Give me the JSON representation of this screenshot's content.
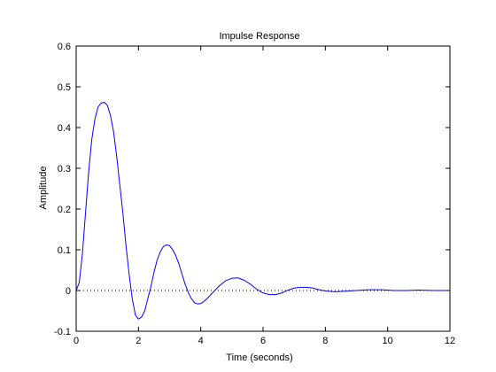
{
  "chart_data": {
    "type": "line",
    "title": "Impulse Response",
    "xlabel": "Time (seconds)",
    "ylabel": "Amplitude",
    "xlim": [
      0,
      12
    ],
    "ylim": [
      -0.1,
      0.6
    ],
    "x_ticks": [
      0,
      2,
      4,
      6,
      8,
      10,
      12
    ],
    "y_ticks": [
      -0.1,
      0,
      0.1,
      0.2,
      0.3,
      0.4,
      0.5,
      0.6
    ],
    "x_tick_labels": [
      "0",
      "2",
      "4",
      "6",
      "8",
      "10",
      "12"
    ],
    "y_tick_labels": [
      "-0.1",
      "0",
      "0.1",
      "0.2",
      "0.3",
      "0.4",
      "0.5",
      "0.6"
    ],
    "grid": false,
    "reference_line": {
      "y": 0,
      "style": "dotted",
      "color": "#000000"
    },
    "series": [
      {
        "color": "#0000ff",
        "x": [
          0,
          0.1,
          0.2,
          0.3,
          0.4,
          0.5,
          0.6,
          0.7,
          0.8,
          0.9,
          1.0,
          1.1,
          1.2,
          1.3,
          1.4,
          1.5,
          1.6,
          1.7,
          1.8,
          1.9,
          2.0,
          2.1,
          2.2,
          2.3,
          2.4,
          2.5,
          2.6,
          2.7,
          2.8,
          2.9,
          3.0,
          3.1,
          3.2,
          3.3,
          3.4,
          3.5,
          3.6,
          3.7,
          3.8,
          3.9,
          4.0,
          4.1,
          4.2,
          4.3,
          4.4,
          4.6,
          4.8,
          5.0,
          5.2,
          5.4,
          5.6,
          5.8,
          6.0,
          6.2,
          6.4,
          6.6,
          6.8,
          7.0,
          7.2,
          7.4,
          7.6,
          7.8,
          8.0,
          8.3,
          8.6,
          9.0,
          9.4,
          9.8,
          10.2,
          10.6,
          11.0,
          11.5,
          12.0
        ],
        "y": [
          0,
          0.02,
          0.09,
          0.19,
          0.29,
          0.37,
          0.42,
          0.45,
          0.46,
          0.462,
          0.455,
          0.43,
          0.39,
          0.33,
          0.26,
          0.19,
          0.11,
          0.04,
          -0.02,
          -0.06,
          -0.07,
          -0.065,
          -0.05,
          -0.02,
          0.01,
          0.045,
          0.075,
          0.095,
          0.108,
          0.112,
          0.11,
          0.1,
          0.085,
          0.065,
          0.04,
          0.015,
          -0.005,
          -0.02,
          -0.03,
          -0.033,
          -0.032,
          -0.027,
          -0.02,
          -0.012,
          -0.004,
          0.012,
          0.024,
          0.03,
          0.031,
          0.025,
          0.015,
          0.003,
          -0.006,
          -0.01,
          -0.01,
          -0.006,
          0.001,
          0.006,
          0.008,
          0.008,
          0.006,
          0.002,
          -0.001,
          -0.003,
          -0.002,
          0,
          0.002,
          0.002,
          0,
          0,
          0.001,
          0,
          0
        ]
      }
    ]
  }
}
